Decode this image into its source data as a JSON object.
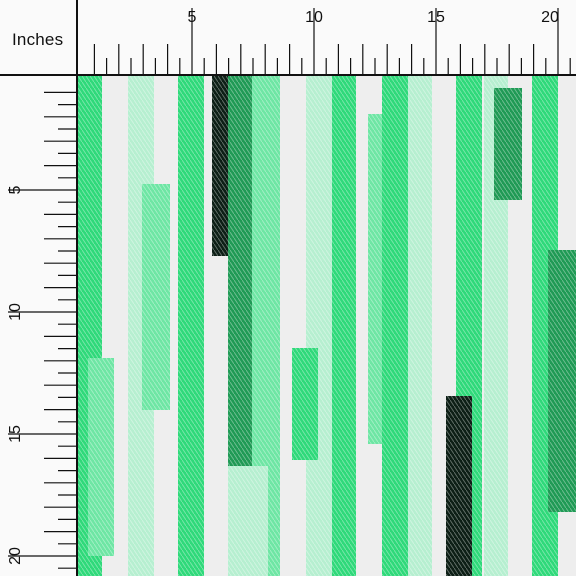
{
  "ruler": {
    "units_label": "Inches",
    "top_numbers": [
      "5",
      "10",
      "15",
      "20"
    ],
    "left_numbers": [
      "5",
      "10",
      "15",
      "20"
    ]
  },
  "fabric": {
    "background": "#eeeeee",
    "colors": {
      "bright_green": "#2fd97a",
      "mint": "#6ee6a4",
      "pale_mint": "#b6efd0",
      "forest": "#1f9a55",
      "black": "#0d1f16"
    },
    "pattern": "vertical brush-stroke stripes in shades of green with black accents"
  }
}
